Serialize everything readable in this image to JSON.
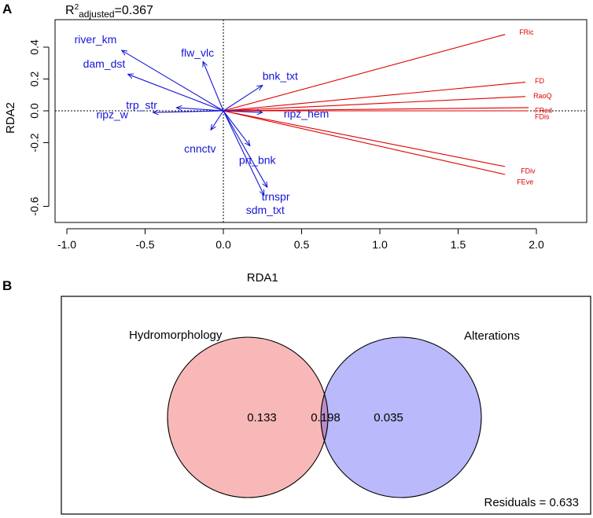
{
  "panel_a": {
    "label": "A",
    "r2_prefix": "R",
    "r2_superscript": "2",
    "r2_subscript": "adjusted",
    "r2_value": "=0.367"
  },
  "panel_b": {
    "label": "B"
  },
  "colors": {
    "env_arrow": "#1515d8",
    "response_arrow": "#e00000",
    "set_a_fill": "#f9b8b8",
    "set_b_fill": "#b9b9fb",
    "overlap_fill": "#b98cc7"
  },
  "chart_data": [
    {
      "type": "scatter",
      "subtype": "rda_biplot",
      "title": "",
      "xlabel": "RDA1",
      "ylabel": "RDA2",
      "xlim": [
        -1.0,
        2.0
      ],
      "ylim": [
        -0.7,
        0.5
      ],
      "xticks": [
        -1.0,
        -0.5,
        0.0,
        0.5,
        1.0,
        1.5,
        2.0
      ],
      "xtick_labels": [
        "-1.0",
        "-0.5",
        "0.0",
        "0.5",
        "1.0",
        "1.5",
        "2.0"
      ],
      "yticks": [
        -0.6,
        -0.2,
        0.0,
        0.2,
        0.4
      ],
      "ytick_labels": [
        "-0.6",
        "-0.2",
        "0.0",
        "0.2",
        "0.4"
      ],
      "reference_lines": {
        "x": 0,
        "y": 0
      },
      "explanatory_arrows": [
        {
          "label": "river_km",
          "x": -0.65,
          "y": 0.38
        },
        {
          "label": "dam_dst",
          "x": -0.61,
          "y": 0.23
        },
        {
          "label": "flw_vlc",
          "x": -0.13,
          "y": 0.31
        },
        {
          "label": "bnk_txt",
          "x": 0.25,
          "y": 0.16
        },
        {
          "label": "trp_str",
          "x": -0.3,
          "y": 0.02
        },
        {
          "label": "ripz_w",
          "x": -0.45,
          "y": -0.01
        },
        {
          "label": "ripz_hem",
          "x": 0.25,
          "y": -0.01
        },
        {
          "label": "cnnctv",
          "x": -0.08,
          "y": -0.12
        },
        {
          "label": "prt_bnk",
          "x": 0.17,
          "y": -0.22
        },
        {
          "label": "trnspr",
          "x": 0.28,
          "y": -0.48
        },
        {
          "label": "sdm_txt",
          "x": 0.26,
          "y": -0.53
        }
      ],
      "response_arrows": [
        {
          "label": "FRic",
          "x": 1.8,
          "y": 0.48
        },
        {
          "label": "FD",
          "x": 1.93,
          "y": 0.18
        },
        {
          "label": "RaoQ",
          "x": 1.93,
          "y": 0.09
        },
        {
          "label": "FRed",
          "x": 1.95,
          "y": 0.02
        },
        {
          "label": "FDis",
          "x": 1.95,
          "y": 0.0
        },
        {
          "label": "FDiv",
          "x": 1.8,
          "y": -0.35
        },
        {
          "label": "FEve",
          "x": 1.8,
          "y": -0.4
        }
      ]
    },
    {
      "type": "venn",
      "title": "",
      "sets": [
        {
          "name": "Hydromorphology",
          "unique_value": "0.133"
        },
        {
          "name": "Alterations",
          "unique_value": "0.035"
        }
      ],
      "intersection_value": "0.198",
      "residuals_label": "Residuals = 0.633",
      "residuals": 0.633
    }
  ]
}
